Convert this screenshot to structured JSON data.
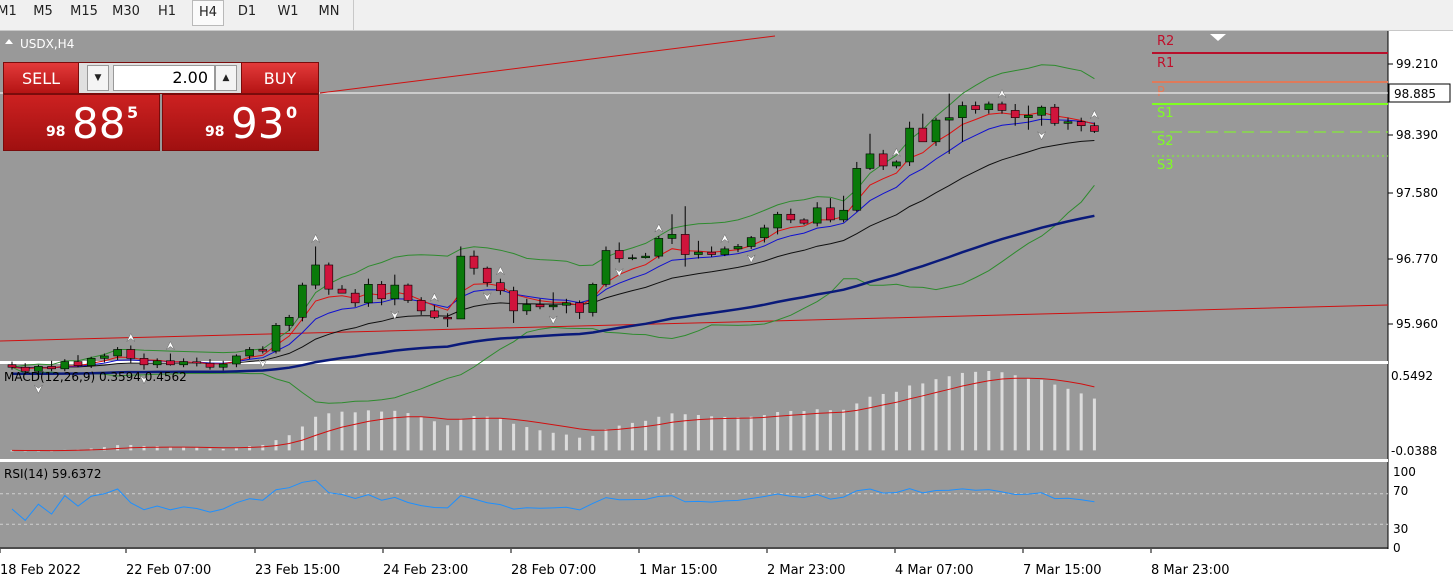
{
  "toolbar": {
    "timeframes": [
      {
        "label": "M1",
        "active": false
      },
      {
        "label": "M5",
        "active": false
      },
      {
        "label": "M15",
        "active": false
      },
      {
        "label": "M30",
        "active": false
      },
      {
        "label": "H1",
        "active": false
      },
      {
        "label": "H4",
        "active": true
      },
      {
        "label": "D1",
        "active": false
      },
      {
        "label": "W1",
        "active": false
      },
      {
        "label": "MN",
        "active": false
      }
    ]
  },
  "chart": {
    "symbol_label": "USDX,H4",
    "current_price": "98.885",
    "price_ticks": [
      "99.210",
      "98.390",
      "97.580",
      "96.770",
      "95.960"
    ],
    "time_labels": [
      "18 Feb 2022",
      "22 Feb 07:00",
      "23 Feb 15:00",
      "24 Feb 23:00",
      "28 Feb 07:00",
      "1 Mar 15:00",
      "2 Mar 23:00",
      "4 Mar 07:00",
      "7 Mar 15:00",
      "8 Mar 23:00"
    ],
    "pivot_labels": [
      "R2",
      "R1",
      "P",
      "S1",
      "S2",
      "S3"
    ],
    "colors": {
      "background": "#999999",
      "bull_candle": "#0a7a0a",
      "bear_candle": "#d0143c",
      "ma_fast": "#e01010",
      "ma_mid": "#1010d0",
      "ma_slow": "#101010",
      "ma_long": "#0a1a7a",
      "bollinger": "#2e8b2e",
      "macd_signal": "#d01010",
      "rsi_line": "#1e90ff"
    }
  },
  "indicators": {
    "macd": {
      "label": "MACD(12,26,9) 0.3594 0.4562",
      "ticks": [
        "0.5492",
        "-0.0388"
      ]
    },
    "rsi": {
      "label": "RSI(14) 59.6372",
      "ticks": [
        "100",
        "70",
        "30",
        "0"
      ]
    }
  },
  "trade_panel": {
    "sell_label": "SELL",
    "buy_label": "BUY",
    "lot": "2.00",
    "sell_price_small": "98",
    "sell_price_big": "88",
    "sell_price_sup": "5",
    "buy_price_small": "98",
    "buy_price_big": "93",
    "buy_price_sup": "0"
  }
}
